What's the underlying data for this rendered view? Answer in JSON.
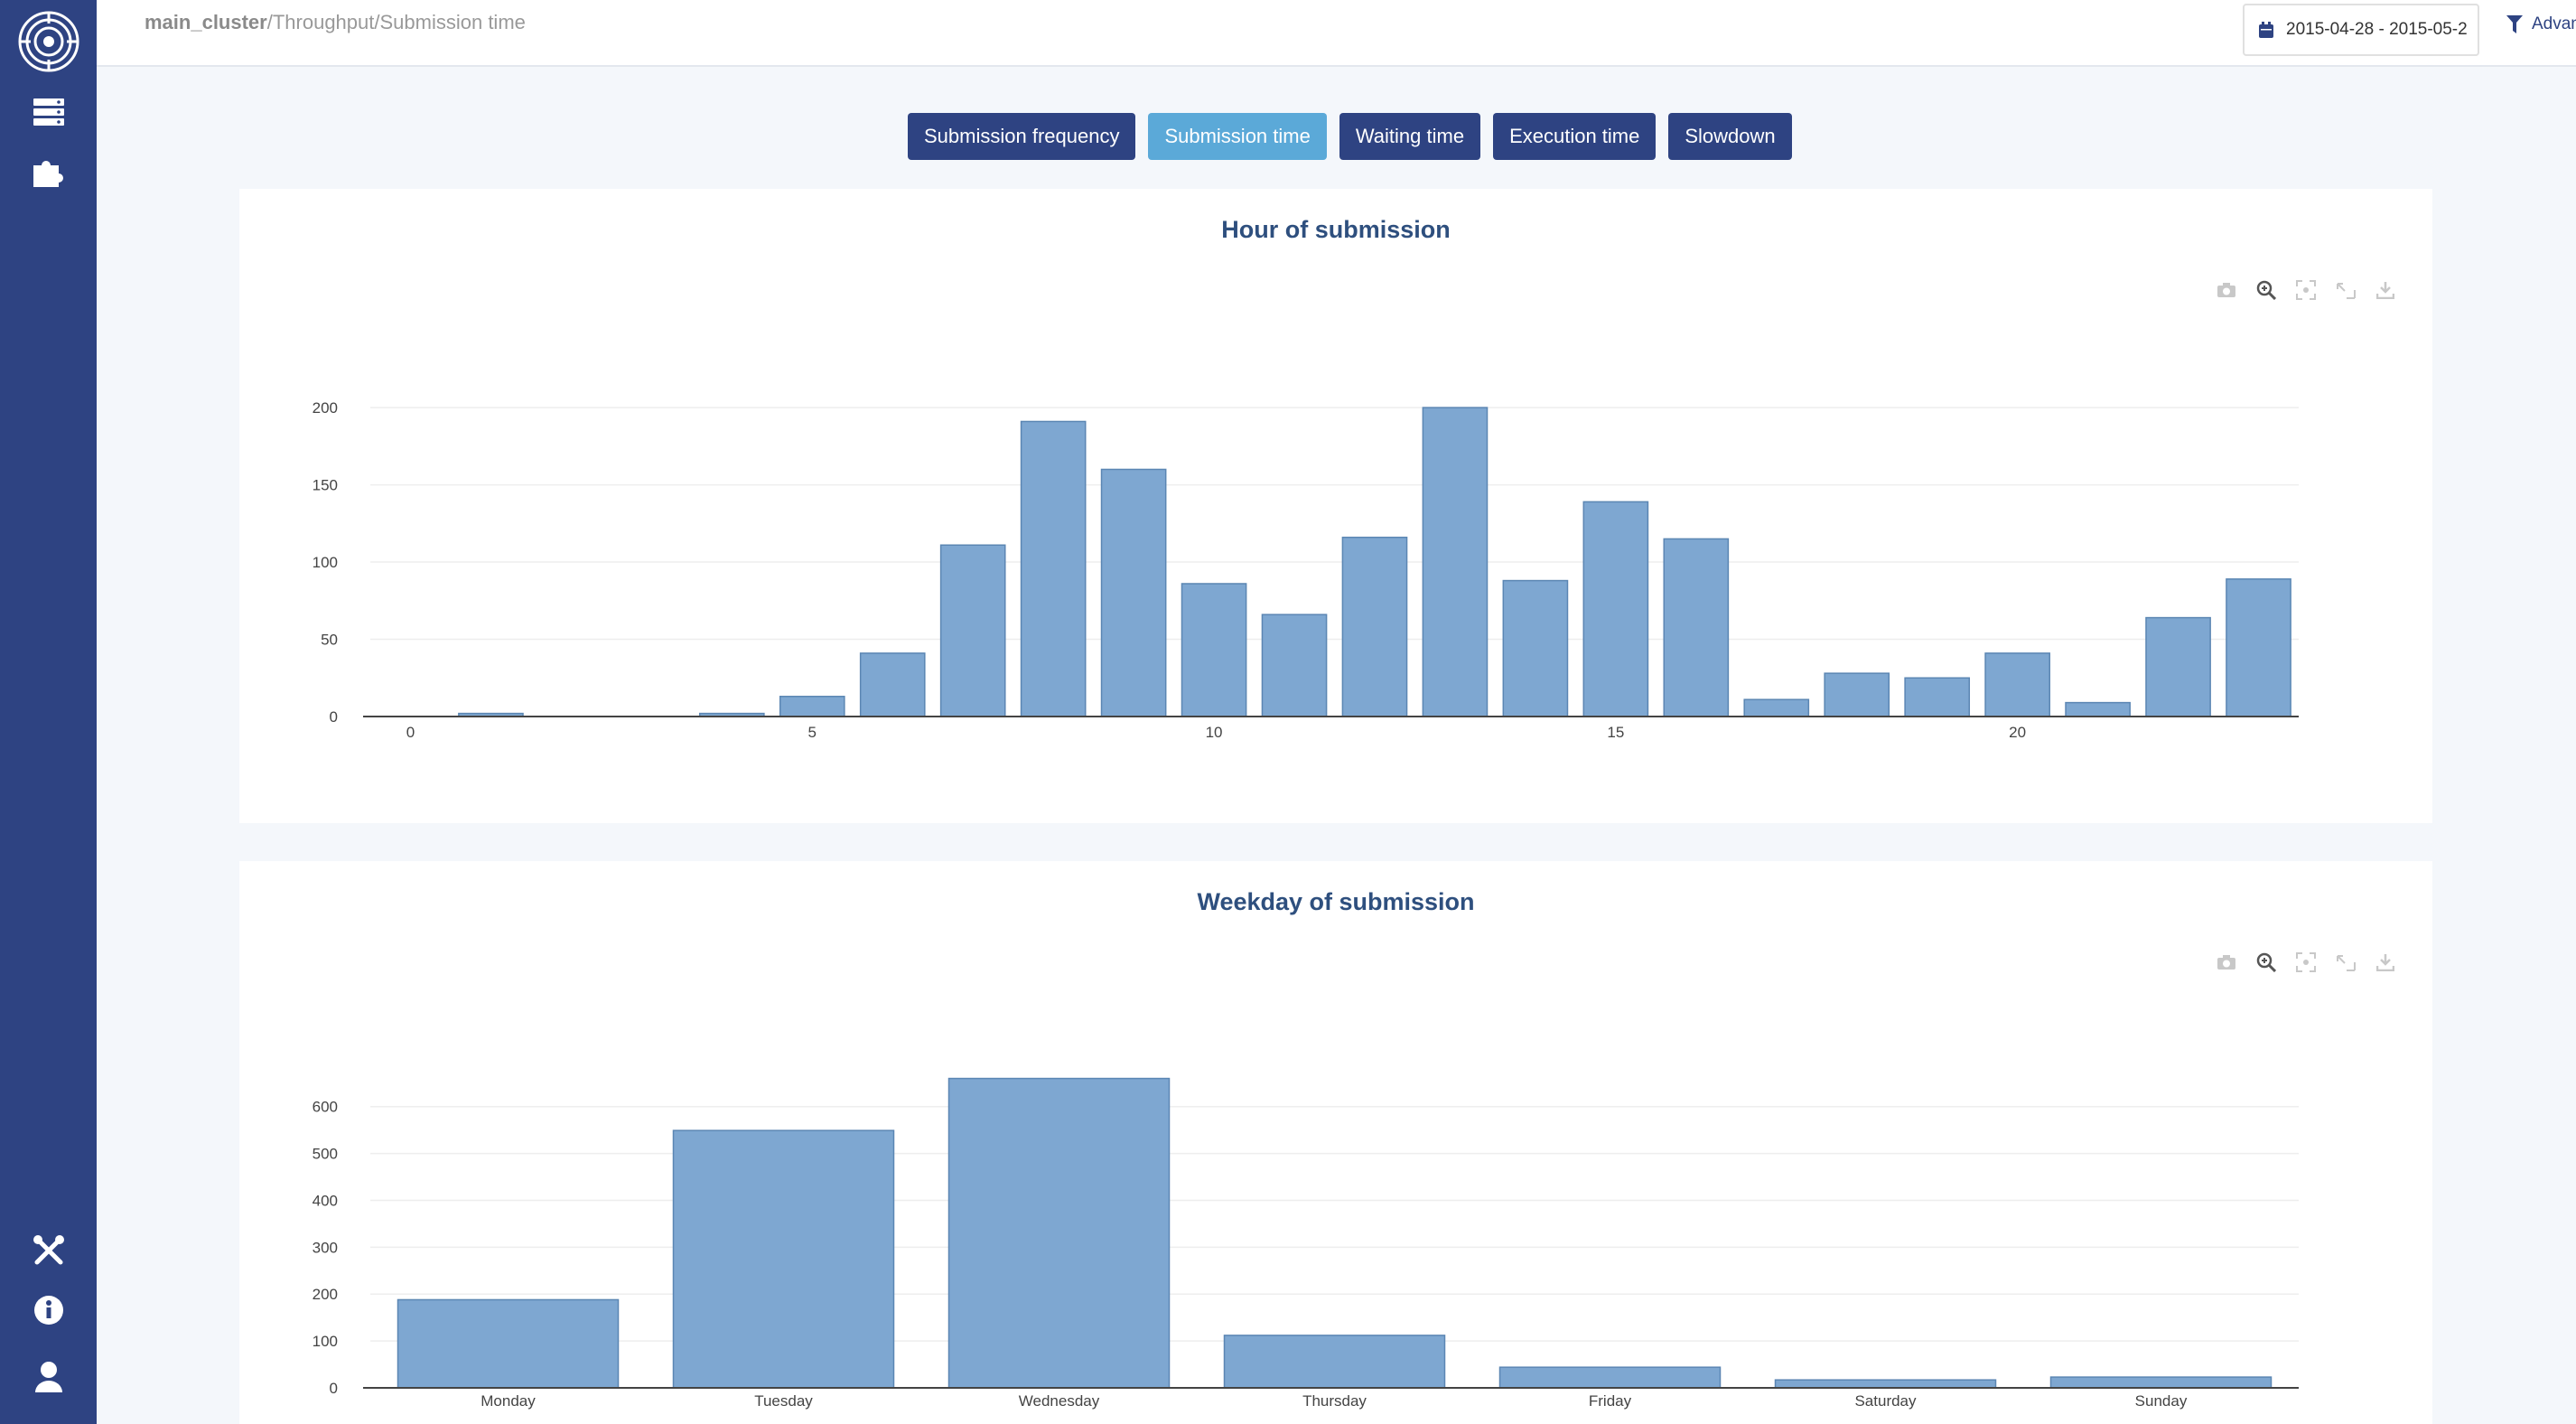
{
  "app": {
    "breadcrumb": {
      "cluster": "main_cluster",
      "section": "/Throughput",
      "page": "/Submission time"
    },
    "date_range": "2015-04-28 - 2015-05-2",
    "advanced_label": "Advanced"
  },
  "sidebar": {
    "icons": [
      "logo-icon",
      "servers-icon",
      "plugins-icon",
      "tools-icon",
      "info-icon",
      "user-icon"
    ]
  },
  "tabs": [
    {
      "label": "Submission frequency",
      "active": false
    },
    {
      "label": "Submission time",
      "active": true
    },
    {
      "label": "Waiting time",
      "active": false
    },
    {
      "label": "Execution time",
      "active": false
    },
    {
      "label": "Slowdown",
      "active": false
    }
  ],
  "colors": {
    "sidebar": "#2e4382",
    "tab": "#2e4382",
    "tab_active": "#5ba9d8",
    "bar_fill": "#7ea7d1",
    "bar_stroke": "#5b86b3"
  },
  "modebar_icons": [
    "camera-icon",
    "zoom-icon",
    "autoscale-icon",
    "reset-axes-icon",
    "download-icon"
  ],
  "chart_data": [
    {
      "type": "bar",
      "title": "Hour of submission",
      "x": [
        0,
        1,
        2,
        3,
        4,
        5,
        6,
        7,
        8,
        9,
        10,
        11,
        12,
        13,
        14,
        15,
        16,
        17,
        18,
        19,
        20,
        21,
        22,
        23
      ],
      "values": [
        0,
        2,
        0,
        0,
        2,
        13,
        41,
        111,
        191,
        160,
        86,
        66,
        116,
        200,
        88,
        139,
        115,
        11,
        28,
        25,
        41,
        9,
        64,
        89
      ],
      "xticks": [
        0,
        5,
        10,
        15,
        20
      ],
      "yticks": [
        0,
        50,
        100,
        150,
        200
      ],
      "ylim": [
        0,
        210
      ],
      "grid": true
    },
    {
      "type": "bar",
      "title": "Weekday of submission",
      "categories": [
        "Monday",
        "Tuesday",
        "Wednesday",
        "Thursday",
        "Friday",
        "Saturday",
        "Sunday"
      ],
      "values": [
        188,
        549,
        660,
        112,
        44,
        17,
        23
      ],
      "yticks": [
        0,
        100,
        200,
        300,
        400,
        500,
        600
      ],
      "ylim": [
        0,
        690
      ],
      "grid": true
    }
  ]
}
